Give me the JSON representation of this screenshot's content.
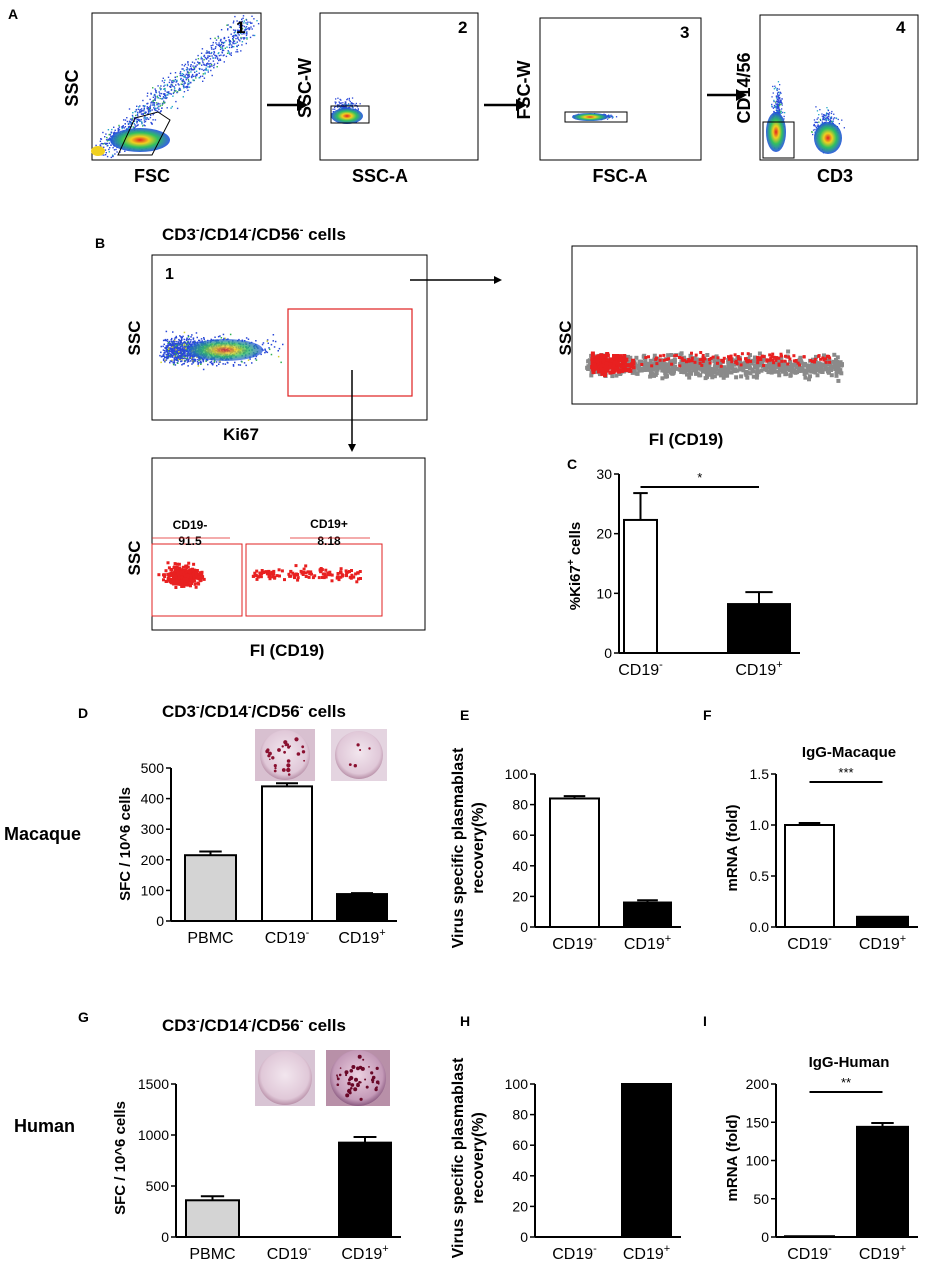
{
  "panels": {
    "A": "A",
    "B": "B",
    "C": "C",
    "D": "D",
    "E": "E",
    "F": "F",
    "G": "G",
    "H": "H",
    "I": "I"
  },
  "species": {
    "macaque": "Macaque",
    "human": "Human"
  },
  "gating": {
    "plots": [
      {
        "num": "1",
        "xlabel": "FSC",
        "ylabel": "SSC"
      },
      {
        "num": "2",
        "xlabel": "SSC-A",
        "ylabel": "SSC-W"
      },
      {
        "num": "3",
        "xlabel": "FSC-A",
        "ylabel": "FSC-W"
      },
      {
        "num": "4",
        "xlabel": "CD3",
        "ylabel": "CD14/56"
      }
    ]
  },
  "panelB": {
    "title_parts": [
      "CD3",
      "-",
      "/CD14",
      "-",
      "/CD56",
      "-",
      " cells"
    ],
    "plot1": {
      "num": "1",
      "xlabel": "Ki67",
      "ylabel": "SSC"
    },
    "plot_right": {
      "xlabel": "FI (CD19)",
      "ylabel": "SSC"
    },
    "plot_bottom": {
      "xlabel": "FI (CD19)",
      "ylabel": "SSC",
      "gates": [
        {
          "name": "CD19-",
          "value": "91.5"
        },
        {
          "name": "CD19+",
          "value": "8.18"
        }
      ]
    }
  },
  "cells_title_parts": [
    "CD3",
    "-",
    "/CD14",
    "-",
    "/CD56",
    "-",
    " cells"
  ],
  "chart_data": [
    {
      "id": "C",
      "type": "bar",
      "categories": [
        {
          "base": "CD19",
          "sup": "-"
        },
        {
          "base": "CD19",
          "sup": "+"
        }
      ],
      "values": [
        22.3,
        8.2
      ],
      "errors": [
        4.5,
        2.0
      ],
      "fills": [
        "#ffffff",
        "#000000"
      ],
      "ylabel": "%Ki67+ cells",
      "ylim": [
        0,
        30
      ],
      "yticks": [
        "0",
        "10",
        "20",
        "30"
      ],
      "significance": "*"
    },
    {
      "id": "D",
      "type": "bar",
      "categories": [
        {
          "base": "PBMC",
          "sup": ""
        },
        {
          "base": "CD19",
          "sup": "-"
        },
        {
          "base": "CD19",
          "sup": "+"
        }
      ],
      "values": [
        215,
        440,
        88
      ],
      "errors": [
        12,
        10,
        3
      ],
      "fills": [
        "#d4d4d4",
        "#ffffff",
        "#000000"
      ],
      "ylabel": "SFC / 10^6 cells",
      "ylim": [
        0,
        500
      ],
      "yticks": [
        "0",
        "100",
        "200",
        "300",
        "400",
        "500"
      ]
    },
    {
      "id": "E",
      "type": "bar",
      "categories": [
        {
          "base": "CD19",
          "sup": "-"
        },
        {
          "base": "CD19",
          "sup": "+"
        }
      ],
      "values": [
        84,
        16
      ],
      "errors": [
        1.5,
        1.5
      ],
      "fills": [
        "#ffffff",
        "#000000"
      ],
      "ylabel_lines": [
        "Virus specific plasmablast",
        "recovery(%)"
      ],
      "ylim": [
        0,
        100
      ],
      "yticks": [
        "0",
        "20",
        "40",
        "60",
        "80",
        "100"
      ]
    },
    {
      "id": "F",
      "type": "bar",
      "categories": [
        {
          "base": "CD19",
          "sup": "-"
        },
        {
          "base": "CD19",
          "sup": "+"
        }
      ],
      "values": [
        1.0,
        0.1
      ],
      "errors": [
        0.02,
        0.0
      ],
      "fills": [
        "#ffffff",
        "#000000"
      ],
      "title": "IgG-Macaque",
      "ylabel": "mRNA (fold)",
      "ylim": [
        0,
        1.5
      ],
      "yticks": [
        "0.0",
        "0.5",
        "1.0",
        "1.5"
      ],
      "significance": "***"
    },
    {
      "id": "G",
      "type": "bar",
      "categories": [
        {
          "base": "PBMC",
          "sup": ""
        },
        {
          "base": "CD19",
          "sup": "-"
        },
        {
          "base": "CD19",
          "sup": "+"
        }
      ],
      "values": [
        360,
        0,
        925
      ],
      "errors": [
        40,
        0,
        55
      ],
      "fills": [
        "#d4d4d4",
        "#ffffff",
        "#000000"
      ],
      "ylabel": "SFC / 10^6 cells",
      "ylim": [
        0,
        1500
      ],
      "yticks": [
        "0",
        "500",
        "1000",
        "1500"
      ]
    },
    {
      "id": "H",
      "type": "bar",
      "categories": [
        {
          "base": "CD19",
          "sup": "-"
        },
        {
          "base": "CD19",
          "sup": "+"
        }
      ],
      "values": [
        0,
        100
      ],
      "errors": [
        0,
        0
      ],
      "fills": [
        "#ffffff",
        "#000000"
      ],
      "ylabel_lines": [
        "Virus specific plasmablast",
        "recovery(%)"
      ],
      "ylim": [
        0,
        100
      ],
      "yticks": [
        "0",
        "20",
        "40",
        "60",
        "80",
        "100"
      ]
    },
    {
      "id": "I",
      "type": "bar",
      "categories": [
        {
          "base": "CD19",
          "sup": "-"
        },
        {
          "base": "CD19",
          "sup": "+"
        }
      ],
      "values": [
        1,
        144
      ],
      "errors": [
        0,
        5
      ],
      "fills": [
        "#ffffff",
        "#000000"
      ],
      "title": "IgG-Human",
      "ylabel": "mRNA (fold)",
      "ylim": [
        0,
        200
      ],
      "yticks": [
        "0",
        "50",
        "100",
        "150",
        "200"
      ],
      "significance": "**"
    }
  ]
}
